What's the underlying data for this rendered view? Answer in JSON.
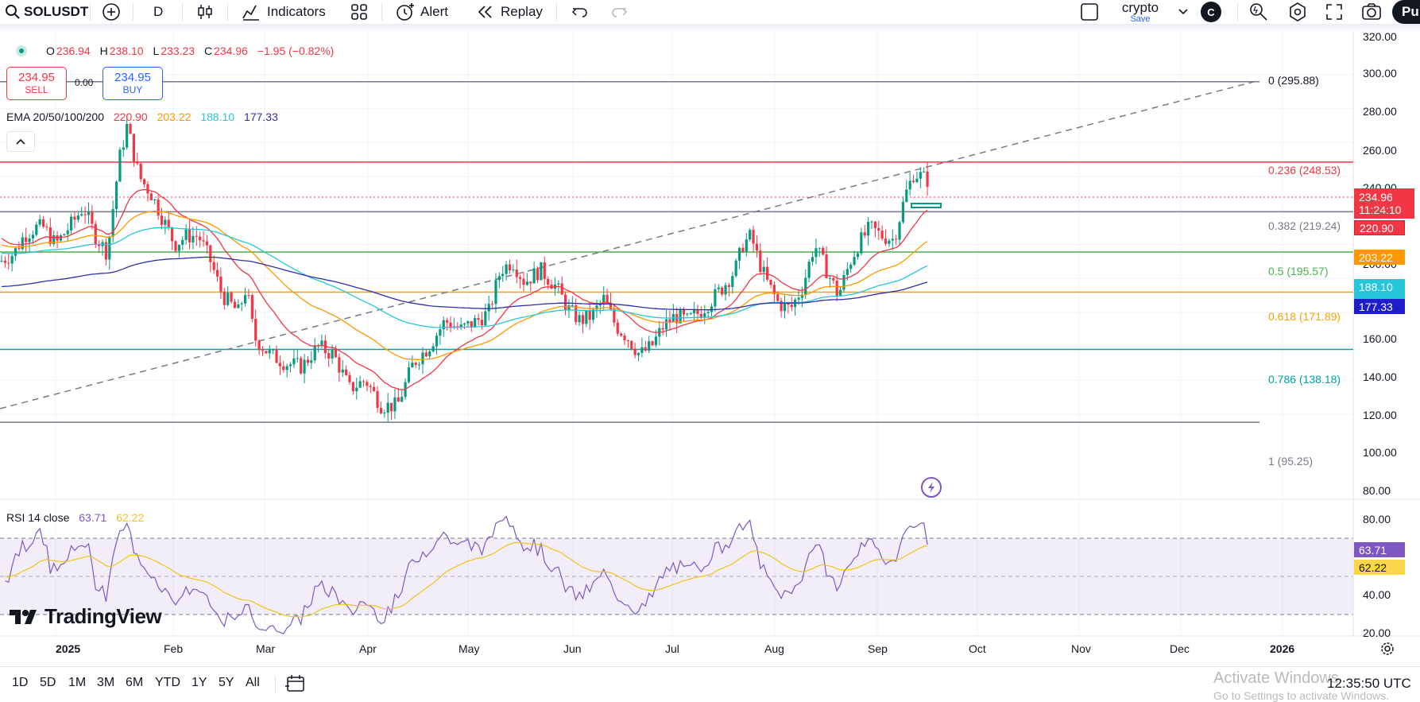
{
  "toolbar": {
    "symbol": "SOLUSDT",
    "interval": "D",
    "indicators_label": "Indicators",
    "alert_label": "Alert",
    "replay_label": "Replay",
    "layout_name": "crypto",
    "layout_status": "Save",
    "avatar_letter": "C",
    "publish_label": "Pu"
  },
  "legend": {
    "open_prefix": "O",
    "open": "236.94",
    "high_prefix": "H",
    "high": "238.10",
    "low_prefix": "L",
    "low": "233.23",
    "close_prefix": "C",
    "close": "234.96",
    "change": "−1.95 (−0.82%)",
    "sell_price": "234.95",
    "sell_label": "SELL",
    "buy_price": "234.95",
    "buy_label": "BUY",
    "spread": "0.00",
    "ema_title": "EMA 20/50/100/200",
    "ema20": "220.90",
    "ema50": "203.22",
    "ema100": "188.10",
    "ema200": "177.33"
  },
  "rsi_legend": {
    "title": "RSI 14 close",
    "rsi": "63.71",
    "ma": "62.22"
  },
  "price_axis": [
    "320.00",
    "300.00",
    "280.00",
    "260.00",
    "240.00",
    "200.00",
    "160.00",
    "140.00",
    "120.00",
    "100.00",
    "80.00"
  ],
  "rsi_axis": [
    "80.00",
    "40.00",
    "20.00"
  ],
  "price_tags": {
    "last": "234.96",
    "countdown": "11:24:10",
    "ema20": "220.90",
    "ema50": "203.22",
    "ema100": "188.10",
    "ema200": "177.33",
    "rsi": "63.71",
    "rsi_ma": "62.22"
  },
  "fib_labels": [
    {
      "text": "0 (295.88)",
      "color": "#787b86"
    },
    {
      "text": "0.236 (248.53)",
      "color": "#f23645"
    },
    {
      "text": "0.382 (219.24)",
      "color": "#787b86"
    },
    {
      "text": "0.5 (195.57)",
      "color": "#4caf50"
    },
    {
      "text": "0.618 (171.89)",
      "color": "#f0a500"
    },
    {
      "text": "0.786 (138.18)",
      "color": "#00a3a3"
    },
    {
      "text": "1 (95.25)",
      "color": "#787b86"
    }
  ],
  "time_axis": [
    "2025",
    "Feb",
    "Mar",
    "Apr",
    "May",
    "Jun",
    "Jul",
    "Aug",
    "Sep",
    "Oct",
    "Nov",
    "Dec",
    "2026"
  ],
  "ranges": [
    "1D",
    "5D",
    "1M",
    "3M",
    "6M",
    "YTD",
    "1Y",
    "5Y",
    "All"
  ],
  "clock": "12:35:50 UTC",
  "watermark": {
    "line1": "Activate Windows",
    "line2": "Go to Settings to activate Windows."
  },
  "brand": "TradingView",
  "colors": {
    "up": "#089981",
    "down": "#f23645",
    "ema20": "#f23645",
    "ema50": "#ff9800",
    "ema100": "#26c6da",
    "ema200": "#2e2ea8",
    "rsi": "#7e57c2",
    "rsi_ma": "#f0c419"
  },
  "icons": [
    "search-icon",
    "add-symbol-icon",
    "candles-icon",
    "indicators-icon",
    "templates-icon",
    "alert-icon",
    "replay-icon",
    "undo-icon",
    "redo-icon",
    "layout-icon",
    "chevron-down-icon",
    "quick-search-icon",
    "settings-icon",
    "fullscreen-icon",
    "camera-icon",
    "lightning-icon",
    "calendar-range-icon",
    "settings-gear-icon"
  ]
}
